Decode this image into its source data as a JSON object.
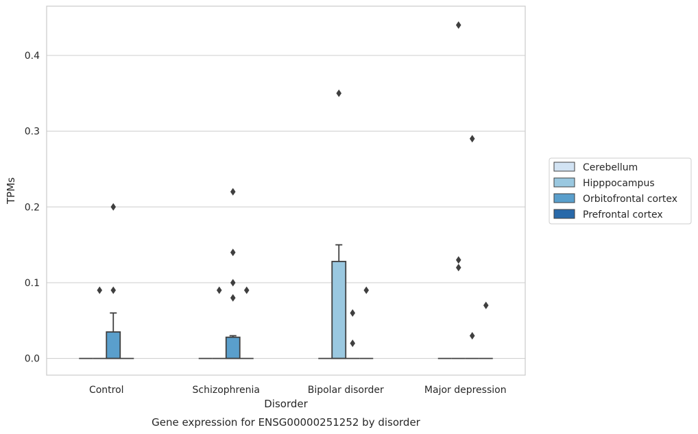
{
  "chart_data": {
    "type": "box",
    "title": "Gene expression for ENSG00000251252 by disorder",
    "xlabel": "Disorder",
    "ylabel": "TPMs",
    "ylim": [
      -0.022,
      0.465
    ],
    "yticks": [
      0.0,
      0.1,
      0.2,
      0.3,
      0.4
    ],
    "ytick_labels": [
      "0.0",
      "0.1",
      "0.2",
      "0.3",
      "0.4"
    ],
    "grid": "horizontal",
    "legend_position": "right",
    "categories": [
      "Control",
      "Schizophrenia",
      "Bipolar disorder",
      "Major depression"
    ],
    "series": [
      {
        "name": "Cerebellum",
        "color": "#d2e3f3",
        "boxes": [
          {
            "q1": 0,
            "median": 0,
            "q3": 0,
            "whisker_low": 0,
            "whisker_high": 0,
            "outliers": []
          },
          {
            "q1": 0,
            "median": 0,
            "q3": 0,
            "whisker_low": 0,
            "whisker_high": 0,
            "outliers": []
          },
          {
            "q1": 0,
            "median": 0,
            "q3": 0,
            "whisker_low": 0,
            "whisker_high": 0,
            "outliers": []
          },
          {
            "q1": 0,
            "median": 0,
            "q3": 0,
            "whisker_low": 0,
            "whisker_high": 0,
            "outliers": []
          }
        ]
      },
      {
        "name": "Hipppocampus",
        "color": "#9ac8e0",
        "boxes": [
          {
            "q1": 0,
            "median": 0,
            "q3": 0,
            "whisker_low": 0,
            "whisker_high": 0,
            "outliers": [
              0.09
            ]
          },
          {
            "q1": 0,
            "median": 0,
            "q3": 0,
            "whisker_low": 0,
            "whisker_high": 0,
            "outliers": [
              0.09
            ]
          },
          {
            "q1": 0,
            "median": 0,
            "q3": 0.128,
            "whisker_low": 0,
            "whisker_high": 0.15,
            "outliers": [
              0.35
            ]
          },
          {
            "q1": 0,
            "median": 0,
            "q3": 0,
            "whisker_low": 0,
            "whisker_high": 0,
            "outliers": [
              0.44,
              0.13,
              0.12
            ]
          }
        ]
      },
      {
        "name": "Orbitofrontal cortex",
        "color": "#5a9fcc",
        "boxes": [
          {
            "q1": 0,
            "median": 0,
            "q3": 0.035,
            "whisker_low": 0,
            "whisker_high": 0.06,
            "outliers": [
              0.2,
              0.09
            ]
          },
          {
            "q1": 0,
            "median": 0,
            "q3": 0.028,
            "whisker_low": 0,
            "whisker_high": 0.03,
            "outliers": [
              0.22,
              0.14,
              0.1,
              0.08
            ]
          },
          {
            "q1": 0,
            "median": 0,
            "q3": 0,
            "whisker_low": 0,
            "whisker_high": 0,
            "outliers": [
              0.06,
              0.02
            ]
          },
          {
            "q1": 0,
            "median": 0,
            "q3": 0,
            "whisker_low": 0,
            "whisker_high": 0,
            "outliers": [
              0.29,
              0.03
            ]
          }
        ]
      },
      {
        "name": "Prefrontal cortex",
        "color": "#2869a9",
        "boxes": [
          {
            "q1": 0,
            "median": 0,
            "q3": 0,
            "whisker_low": 0,
            "whisker_high": 0,
            "outliers": []
          },
          {
            "q1": 0,
            "median": 0,
            "q3": 0,
            "whisker_low": 0,
            "whisker_high": 0,
            "outliers": [
              0.09
            ]
          },
          {
            "q1": 0,
            "median": 0,
            "q3": 0,
            "whisker_low": 0,
            "whisker_high": 0,
            "outliers": [
              0.09
            ]
          },
          {
            "q1": 0,
            "median": 0,
            "q3": 0,
            "whisker_low": 0,
            "whisker_high": 0,
            "outliers": [
              0.07
            ]
          }
        ]
      }
    ]
  }
}
